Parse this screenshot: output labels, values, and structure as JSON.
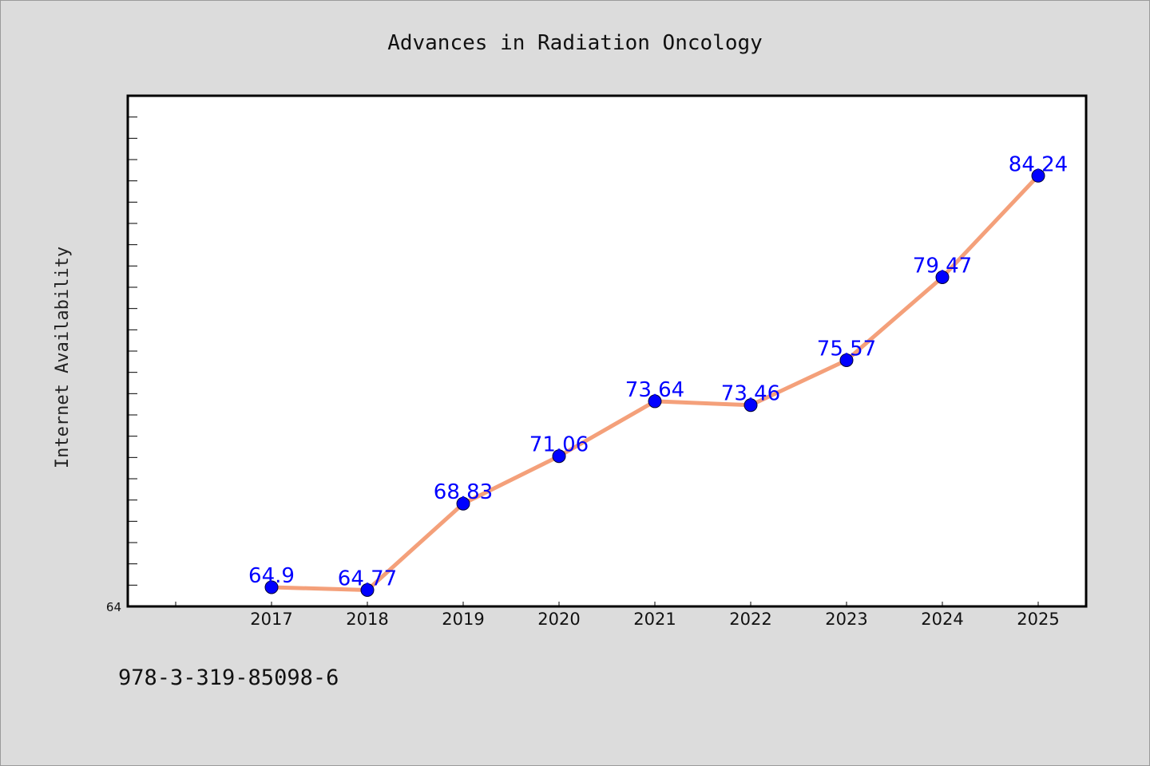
{
  "chart_data": {
    "type": "line",
    "title": "Advances in Radiation Oncology",
    "xlabel": "",
    "ylabel": "Internet Availability",
    "categories": [
      "2017",
      "2018",
      "2019",
      "2020",
      "2021",
      "2022",
      "2023",
      "2024",
      "2025"
    ],
    "series": [
      {
        "values": [
          64.9,
          64.77,
          68.83,
          71.06,
          73.64,
          73.46,
          75.57,
          79.47,
          84.24
        ],
        "labels": [
          "64.9",
          "64.77",
          "68.83",
          "71.06",
          "73.64",
          "73.46",
          "75.57",
          "79.47",
          "84.24"
        ],
        "line_color": "#f4a07a",
        "marker_color": "#0000ff"
      }
    ],
    "ylim": [
      64,
      88
    ],
    "yticks": [
      "64"
    ],
    "grid": false,
    "legend": "none"
  },
  "footer": {
    "id_text": "978-3-319-85098-6"
  }
}
